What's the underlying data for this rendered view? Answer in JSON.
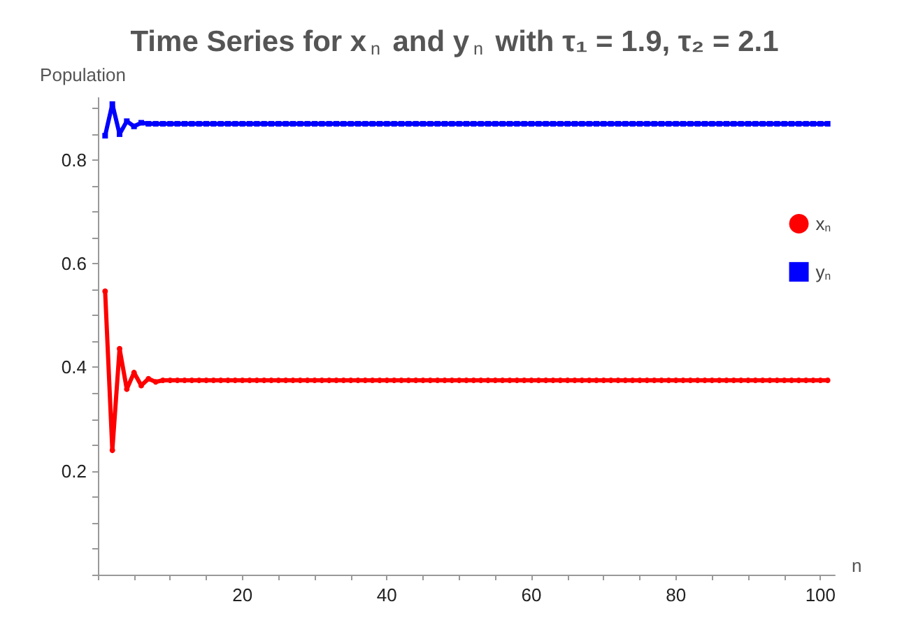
{
  "chart_data": {
    "type": "line",
    "title": "Time Series for x$_{n}$ and y$_{n}$ with τ₁ = 1.9, τ₂ = 2.1",
    "xlabel": "n",
    "ylabel": "Population",
    "x": [
      1,
      2,
      3,
      4,
      5,
      6,
      7,
      8,
      9,
      10,
      11,
      12,
      13,
      14,
      15,
      16,
      17,
      18,
      19,
      20,
      21,
      22,
      23,
      24,
      25,
      26,
      27,
      28,
      29,
      30,
      31,
      32,
      33,
      34,
      35,
      36,
      37,
      38,
      39,
      40,
      41,
      42,
      43,
      44,
      45,
      46,
      47,
      48,
      49,
      50,
      51,
      52,
      53,
      54,
      55,
      56,
      57,
      58,
      59,
      60,
      61,
      62,
      63,
      64,
      65,
      66,
      67,
      68,
      69,
      70,
      71,
      72,
      73,
      74,
      75,
      76,
      77,
      78,
      79,
      80,
      81,
      82,
      83,
      84,
      85,
      86,
      87,
      88,
      89,
      90,
      91,
      92,
      93,
      94,
      95,
      96,
      97,
      98,
      99,
      100,
      101
    ],
    "series": [
      {
        "name": "x$_{n}$",
        "color": "#ff0000",
        "marker": "circle",
        "values": [
          0.547,
          0.24,
          0.436,
          0.358,
          0.39,
          0.365,
          0.378,
          0.372,
          0.375,
          0.375,
          0.375,
          0.375,
          0.375,
          0.375,
          0.375,
          0.375,
          0.375,
          0.375,
          0.375,
          0.375,
          0.375,
          0.375,
          0.375,
          0.375,
          0.375,
          0.375,
          0.375,
          0.375,
          0.375,
          0.375,
          0.375,
          0.375,
          0.375,
          0.375,
          0.375,
          0.375,
          0.375,
          0.375,
          0.375,
          0.375,
          0.375,
          0.375,
          0.375,
          0.375,
          0.375,
          0.375,
          0.375,
          0.375,
          0.375,
          0.375,
          0.375,
          0.375,
          0.375,
          0.375,
          0.375,
          0.375,
          0.375,
          0.375,
          0.375,
          0.375,
          0.375,
          0.375,
          0.375,
          0.375,
          0.375,
          0.375,
          0.375,
          0.375,
          0.375,
          0.375,
          0.375,
          0.375,
          0.375,
          0.375,
          0.375,
          0.375,
          0.375,
          0.375,
          0.375,
          0.375,
          0.375,
          0.375,
          0.375,
          0.375,
          0.375,
          0.375,
          0.375,
          0.375,
          0.375,
          0.375,
          0.375,
          0.375,
          0.375,
          0.375,
          0.375,
          0.375,
          0.375,
          0.375,
          0.375,
          0.375,
          0.375
        ]
      },
      {
        "name": "y$_{n}$",
        "color": "#0000ff",
        "marker": "square",
        "values": [
          0.847,
          0.908,
          0.85,
          0.875,
          0.865,
          0.872,
          0.87,
          0.87,
          0.87,
          0.87,
          0.87,
          0.87,
          0.87,
          0.87,
          0.87,
          0.87,
          0.87,
          0.87,
          0.87,
          0.87,
          0.87,
          0.87,
          0.87,
          0.87,
          0.87,
          0.87,
          0.87,
          0.87,
          0.87,
          0.87,
          0.87,
          0.87,
          0.87,
          0.87,
          0.87,
          0.87,
          0.87,
          0.87,
          0.87,
          0.87,
          0.87,
          0.87,
          0.87,
          0.87,
          0.87,
          0.87,
          0.87,
          0.87,
          0.87,
          0.87,
          0.87,
          0.87,
          0.87,
          0.87,
          0.87,
          0.87,
          0.87,
          0.87,
          0.87,
          0.87,
          0.87,
          0.87,
          0.87,
          0.87,
          0.87,
          0.87,
          0.87,
          0.87,
          0.87,
          0.87,
          0.87,
          0.87,
          0.87,
          0.87,
          0.87,
          0.87,
          0.87,
          0.87,
          0.87,
          0.87,
          0.87,
          0.87,
          0.87,
          0.87,
          0.87,
          0.87,
          0.87,
          0.87,
          0.87,
          0.87,
          0.87,
          0.87,
          0.87,
          0.87,
          0.87,
          0.87,
          0.87,
          0.87,
          0.87,
          0.87,
          0.87
        ]
      }
    ],
    "xlim": [
      0,
      102
    ],
    "xticks": [
      20,
      40,
      60,
      80,
      100
    ],
    "ylim": [
      0,
      0.92
    ],
    "yticks": [
      0.2,
      0.4,
      0.6,
      0.8
    ],
    "grid": false,
    "legend": "top right",
    "line_style": "solid"
  }
}
